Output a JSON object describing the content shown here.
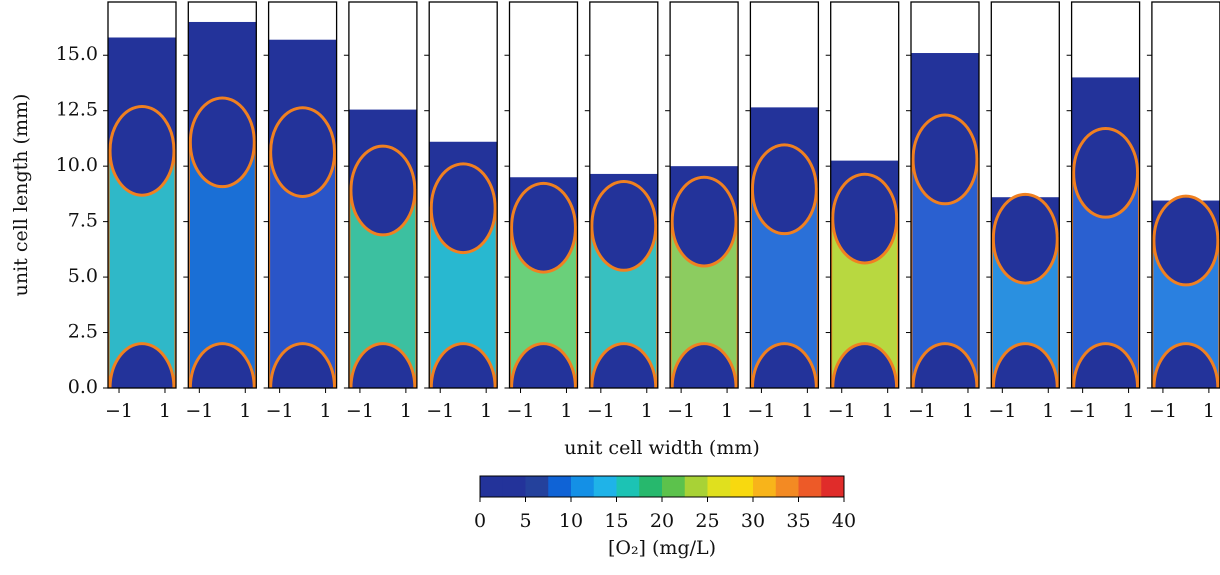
{
  "chart_data": {
    "type": "panels",
    "ylabel": "unit cell length (mm)",
    "xlabel": "unit cell width (mm)",
    "ylim": [
      0,
      17.4
    ],
    "yticks": [
      {
        "value": 0,
        "label": "0.0"
      },
      {
        "value": 2.5,
        "label": "2.5"
      },
      {
        "value": 5,
        "label": "5.0"
      },
      {
        "value": 7.5,
        "label": "7.5"
      },
      {
        "value": 10,
        "label": "10.0"
      },
      {
        "value": 12.5,
        "label": "12.5"
      },
      {
        "value": 15,
        "label": "15.0"
      }
    ],
    "xlim": [
      -1.48,
      1.48
    ],
    "xticks": [
      {
        "value": -1,
        "label": "−1"
      },
      1
    ],
    "fill_color": "#23339a",
    "panels": [
      {
        "height": 15.8,
        "color": "#2fb8c8"
      },
      {
        "height": 16.5,
        "color": "#1a6fd6"
      },
      {
        "height": 15.7,
        "color": "#2a55c8"
      },
      {
        "height": 12.55,
        "color": "#3cc0a0"
      },
      {
        "height": 11.1,
        "color": "#28b8d0"
      },
      {
        "height": 9.5,
        "color": "#6ad07a"
      },
      {
        "height": 9.65,
        "color": "#38c0c0"
      },
      {
        "height": 10.0,
        "color": "#8ccc60"
      },
      {
        "height": 12.65,
        "color": "#2a70d8"
      },
      {
        "height": 10.25,
        "color": "#b8d840"
      },
      {
        "height": 15.1,
        "color": "#2a60d0"
      },
      {
        "height": 8.6,
        "color": "#2a90e0"
      },
      {
        "height": 14.0,
        "color": "#2a60d0"
      },
      {
        "height": 8.45,
        "color": "#2a80e0"
      }
    ],
    "colorbar": {
      "label": "[O₂] (mg/L)",
      "lim": [
        0,
        40
      ],
      "ticks": [
        0,
        5,
        10,
        15,
        20,
        25,
        30,
        35,
        40
      ],
      "colors": [
        "#23339a",
        "#23339a",
        "#24419c",
        "#0f63d6",
        "#1490e6",
        "#1fb3e8",
        "#1cc3b4",
        "#27b86d",
        "#5cc24c",
        "#a8d236",
        "#e0e01e",
        "#f8d90f",
        "#f8b41a",
        "#f38a23",
        "#ed5a28",
        "#e02c2a"
      ]
    }
  }
}
